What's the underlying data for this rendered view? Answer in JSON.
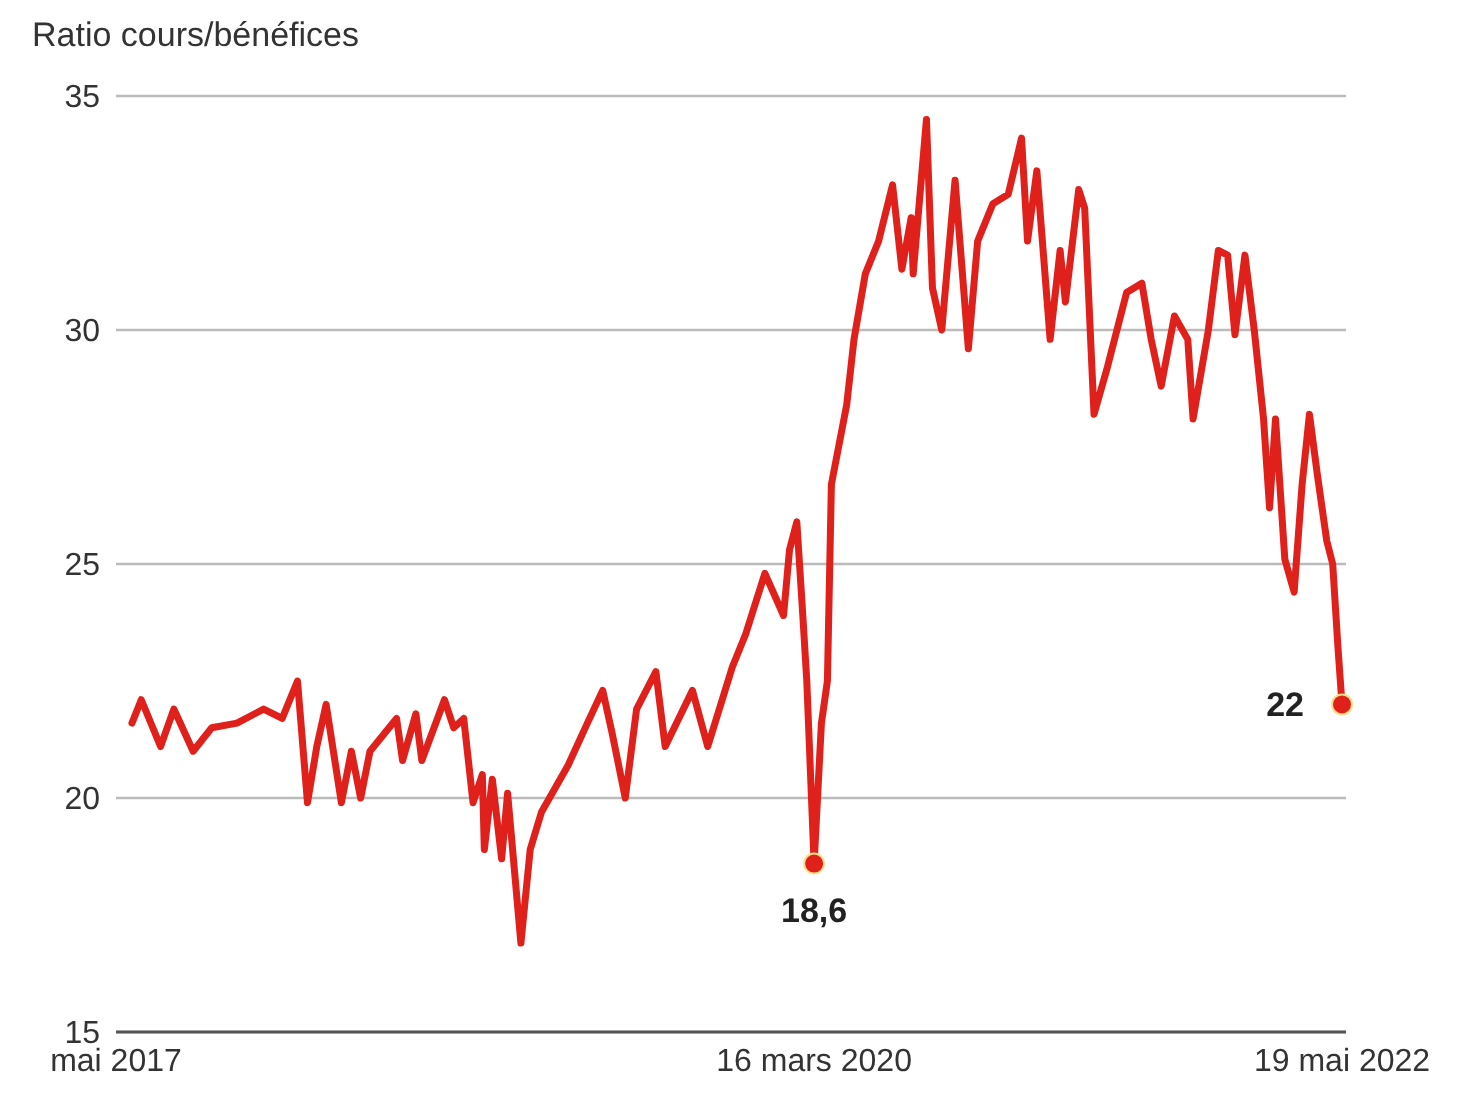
{
  "chart_data": {
    "type": "line",
    "title": "Ratio cours/bénéfices",
    "x": [
      "2017-05-25",
      "2017-06-08",
      "2017-07-07",
      "2017-07-27",
      "2017-08-25",
      "2017-09-22",
      "2017-10-30",
      "2017-12-09",
      "2018-01-06",
      "2018-01-29",
      "2018-02-13",
      "2018-02-27",
      "2018-03-13",
      "2018-04-05",
      "2018-04-20",
      "2018-05-04",
      "2018-05-18",
      "2018-06-27",
      "2018-07-06",
      "2018-07-26",
      "2018-08-04",
      "2018-09-07",
      "2018-09-21",
      "2018-10-06",
      "2018-10-20",
      "2018-11-03",
      "2018-11-06",
      "2018-11-18",
      "2018-12-02",
      "2018-12-11",
      "2018-12-31",
      "2019-01-14",
      "2019-01-31",
      "2019-03-12",
      "2019-04-10",
      "2019-05-03",
      "2019-05-17",
      "2019-06-06",
      "2019-06-23",
      "2019-07-22",
      "2019-08-05",
      "2019-09-15",
      "2019-10-08",
      "2019-11-14",
      "2019-12-04",
      "2020-01-02",
      "2020-01-30",
      "2020-02-08",
      "2020-02-19",
      "2020-02-28",
      "2020-03-05",
      "2020-03-16",
      "2020-03-27",
      "2020-04-05",
      "2020-04-11",
      "2020-05-04",
      "2020-05-15",
      "2020-06-01",
      "2020-06-21",
      "2020-07-12",
      "2020-07-26",
      "2020-08-09",
      "2020-08-12",
      "2020-09-01",
      "2020-09-10",
      "2020-09-24",
      "2020-10-14",
      "2020-11-03",
      "2020-11-17",
      "2020-12-10",
      "2021-01-02",
      "2021-01-22",
      "2021-01-31",
      "2021-02-14",
      "2021-03-06",
      "2021-03-21",
      "2021-03-29",
      "2021-04-18",
      "2021-04-27",
      "2021-05-11",
      "2021-05-31",
      "2021-06-29",
      "2021-07-22",
      "2021-08-05",
      "2021-08-20",
      "2021-09-09",
      "2021-09-29",
      "2021-10-07",
      "2021-10-30",
      "2021-11-14",
      "2021-11-28",
      "2021-12-09",
      "2021-12-24",
      "2022-01-07",
      "2022-01-21",
      "2022-01-30",
      "2022-02-08",
      "2022-02-22",
      "2022-03-08",
      "2022-03-20",
      "2022-03-31",
      "2022-04-12",
      "2022-04-26",
      "2022-05-05",
      "2022-05-13",
      "2022-05-19"
    ],
    "series": [
      {
        "color": "#e0201b",
        "values": [
          21.6,
          22.1,
          21.1,
          21.9,
          21.0,
          21.5,
          21.6,
          21.9,
          21.7,
          22.5,
          19.9,
          21.1,
          22.0,
          19.9,
          21.0,
          20.0,
          21.0,
          21.7,
          20.8,
          21.8,
          20.8,
          22.1,
          21.5,
          21.7,
          19.9,
          20.5,
          18.9,
          20.4,
          18.7,
          20.1,
          16.9,
          18.9,
          19.7,
          20.7,
          21.6,
          22.3,
          21.4,
          20.0,
          21.9,
          22.7,
          21.1,
          22.3,
          21.1,
          22.8,
          23.5,
          24.8,
          23.9,
          25.3,
          25.9,
          23.9,
          22.5,
          18.6,
          21.6,
          22.5,
          26.7,
          28.4,
          29.8,
          31.2,
          31.9,
          33.1,
          31.3,
          32.4,
          31.2,
          34.5,
          30.9,
          30.0,
          33.2,
          29.6,
          31.9,
          32.7,
          32.9,
          34.1,
          31.9,
          33.4,
          29.8,
          31.7,
          30.6,
          33.0,
          32.6,
          28.2,
          29.2,
          30.8,
          31.0,
          29.8,
          28.8,
          30.3,
          29.8,
          28.1,
          30.0,
          31.7,
          31.6,
          29.9,
          31.6,
          30.0,
          28.1,
          26.2,
          28.1,
          25.1,
          24.4,
          26.7,
          28.2,
          26.9,
          25.5,
          25.0,
          23.2,
          22
        ]
      }
    ],
    "xlim": [
      "2017-05-01",
      "2022-05-25"
    ],
    "xticks": [
      {
        "value": "2017-05-01",
        "label": "mai 2017"
      },
      {
        "value": "2020-03-16",
        "label": "16 mars 2020"
      },
      {
        "value": "2022-05-19",
        "label": "19 mai 2022"
      }
    ],
    "ylim": [
      15,
      35
    ],
    "yticks": [
      15,
      20,
      25,
      30,
      35
    ],
    "grid": "y",
    "marker": "none",
    "line_style": "solid",
    "annotations": [
      {
        "text": "18,6",
        "x": "2020-03-16",
        "y": 18.6
      },
      {
        "text": "22",
        "x": "2022-05-19",
        "y": 22
      }
    ]
  }
}
